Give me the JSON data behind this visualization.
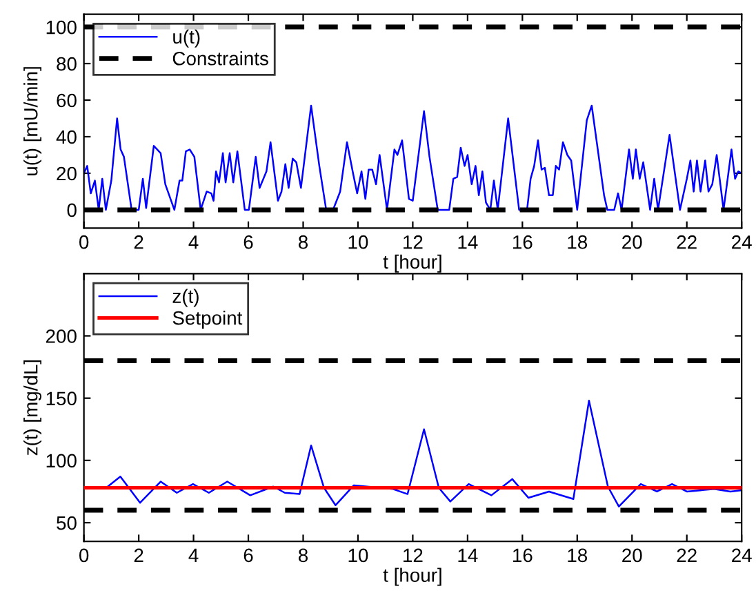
{
  "chart_data": [
    {
      "type": "line",
      "xlabel": "t [hour]",
      "ylabel": "u(t) [mU/min]",
      "xlim": [
        0,
        24
      ],
      "ylim": [
        -10,
        107
      ],
      "xticks": [
        0,
        2,
        4,
        6,
        8,
        10,
        12,
        14,
        16,
        18,
        20,
        22,
        24
      ],
      "yticks": [
        0,
        20,
        40,
        60,
        80,
        100
      ],
      "grid": false,
      "legend": "top left",
      "marker": "none",
      "line_style": "solid",
      "series": [
        {
          "name": "u(t)",
          "color": "#0000ff",
          "x": [
            0,
            0.12,
            0.25,
            0.4,
            0.54,
            0.67,
            0.8,
            1.0,
            1.21,
            1.34,
            1.46,
            1.74,
            2.0,
            2.15,
            2.27,
            2.55,
            2.8,
            2.97,
            3.3,
            3.49,
            3.59,
            3.72,
            3.86,
            4.03,
            4.26,
            4.48,
            4.65,
            4.73,
            4.82,
            4.93,
            5.07,
            5.17,
            5.32,
            5.45,
            5.6,
            5.87,
            6.02,
            6.27,
            6.41,
            6.66,
            6.81,
            7.08,
            7.21,
            7.35,
            7.47,
            7.62,
            7.75,
            7.92,
            8.29,
            8.59,
            8.84,
            9.09,
            9.35,
            9.6,
            9.82,
            9.97,
            10.13,
            10.27,
            10.39,
            10.52,
            10.66,
            10.79,
            11.06,
            11.33,
            11.44,
            11.61,
            11.86,
            12.0,
            12.41,
            12.61,
            12.91,
            13.33,
            13.48,
            13.62,
            13.75,
            13.89,
            14.0,
            14.15,
            14.29,
            14.41,
            14.54,
            14.67,
            14.83,
            14.96,
            15.1,
            15.48,
            15.88,
            16.17,
            16.3,
            16.43,
            16.57,
            16.7,
            16.82,
            16.97,
            17.11,
            17.22,
            17.34,
            17.48,
            17.64,
            17.78,
            18.0,
            18.35,
            18.53,
            18.98,
            19.1,
            19.35,
            19.49,
            19.62,
            19.89,
            20.03,
            20.14,
            20.28,
            20.41,
            20.66,
            20.81,
            20.95,
            21.37,
            21.75,
            22.0,
            22.13,
            22.25,
            22.37,
            22.5,
            22.67,
            22.79,
            22.93,
            23.09,
            23.34,
            23.63,
            23.76,
            23.88,
            24.0
          ],
          "values": [
            20,
            24,
            9,
            16,
            0,
            17,
            0,
            16,
            50,
            33,
            29,
            0,
            0,
            17,
            1,
            35,
            31,
            14,
            0,
            16,
            16,
            32,
            33,
            29,
            0,
            10,
            9,
            5,
            21,
            15,
            31,
            15,
            31,
            15,
            32,
            0,
            0,
            29,
            12,
            21,
            37,
            5,
            10,
            25,
            12,
            28,
            26,
            12,
            57,
            24,
            0,
            0,
            10,
            37,
            20,
            9,
            21,
            6,
            22,
            22,
            14,
            30,
            0,
            33,
            30,
            38,
            6,
            5,
            54,
            29,
            0,
            0,
            17,
            18,
            34,
            24,
            30,
            14,
            24,
            8,
            21,
            4,
            0,
            16,
            0,
            50,
            0,
            0,
            17,
            24,
            38,
            22,
            23,
            8,
            8,
            24,
            22,
            37,
            30,
            27,
            0,
            49,
            57,
            8,
            0,
            0,
            9,
            0,
            33,
            17,
            33,
            17,
            26,
            0,
            17,
            0,
            41,
            0,
            17,
            27,
            10,
            27,
            10,
            27,
            10,
            14,
            30,
            0,
            33,
            17,
            21,
            20
          ]
        }
      ],
      "ref_lines": [
        {
          "axis": "y",
          "value": 0,
          "label": "Constraints",
          "color": "#000000",
          "line_style": "dashed"
        },
        {
          "axis": "y",
          "value": 100,
          "label": null,
          "color": "#000000",
          "line_style": "dashed"
        }
      ]
    },
    {
      "type": "line",
      "xlabel": "t [hour]",
      "ylabel": "z(t) [mg/dL]",
      "xlim": [
        0,
        24
      ],
      "ylim": [
        35,
        250
      ],
      "xticks": [
        0,
        2,
        4,
        6,
        8,
        10,
        12,
        14,
        16,
        18,
        20,
        22,
        24
      ],
      "yticks": [
        50,
        100,
        150,
        200
      ],
      "grid": false,
      "legend": "top left",
      "marker": "none",
      "line_style": "solid",
      "series": [
        {
          "name": "z(t)",
          "color": "#0000ff",
          "x": [
            0.87,
            1.33,
            2.05,
            2.8,
            3.39,
            3.98,
            4.56,
            5.23,
            6.07,
            6.91,
            7.33,
            7.87,
            8.29,
            8.76,
            9.18,
            9.85,
            11.28,
            11.81,
            12.41,
            12.95,
            13.37,
            14.04,
            14.87,
            15.63,
            16.22,
            16.97,
            17.86,
            18.43,
            19.12,
            19.52,
            20.32,
            20.91,
            21.46,
            22.0,
            23.0,
            23.59,
            24.0
          ],
          "values": [
            79,
            87,
            66,
            83,
            74,
            81,
            74,
            83,
            72,
            79,
            74,
            73,
            112,
            78,
            64,
            80,
            77,
            73,
            125,
            78,
            67,
            81,
            72,
            85,
            70,
            75,
            69,
            148,
            79,
            63,
            81,
            75,
            81,
            75,
            77,
            75,
            76
          ]
        }
      ],
      "ref_lines": [
        {
          "axis": "y",
          "value": 78,
          "label": "Setpoint",
          "color": "#ff0000",
          "line_style": "solid"
        },
        {
          "axis": "y",
          "value": 60,
          "label": null,
          "color": "#000000",
          "line_style": "dashed"
        },
        {
          "axis": "y",
          "value": 180,
          "label": null,
          "color": "#000000",
          "line_style": "dashed"
        }
      ]
    }
  ]
}
